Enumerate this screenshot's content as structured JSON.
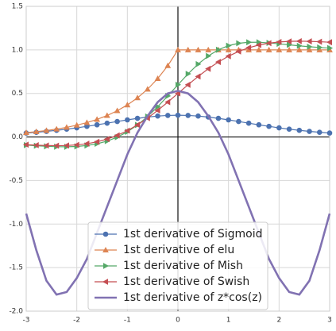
{
  "chart_data": {
    "type": "line",
    "x": [
      -3,
      -2.8,
      -2.6,
      -2.4,
      -2.2,
      -2,
      -1.8,
      -1.6,
      -1.4,
      -1.2,
      -1,
      -0.8,
      -0.6,
      -0.4,
      -0.2,
      0,
      0.2,
      0.4,
      0.6,
      0.8,
      1,
      1.2,
      1.4,
      1.6,
      1.8,
      2,
      2.2,
      2.4,
      2.6,
      2.8,
      3
    ],
    "series": [
      {
        "name": "1st derivative of Sigmoid",
        "color": "#4c72b0",
        "marker": "circle",
        "values": [
          0.0452,
          0.054,
          0.0643,
          0.0763,
          0.0898,
          0.105,
          0.1218,
          0.1398,
          0.1587,
          0.1779,
          0.1966,
          0.2139,
          0.2288,
          0.2403,
          0.2475,
          0.25,
          0.2475,
          0.2403,
          0.2288,
          0.2139,
          0.1966,
          0.1779,
          0.1587,
          0.1398,
          0.1218,
          0.105,
          0.0898,
          0.0763,
          0.0643,
          0.054,
          0.0452
        ]
      },
      {
        "name": "1st derivative of elu",
        "color": "#dd8452",
        "marker": "triangle-up",
        "values": [
          0.0498,
          0.0608,
          0.0743,
          0.0907,
          0.1108,
          0.1353,
          0.1653,
          0.2019,
          0.2466,
          0.3012,
          0.3679,
          0.4493,
          0.5488,
          0.6703,
          0.8187,
          1,
          1,
          1,
          1,
          1,
          1,
          1,
          1,
          1,
          1,
          1,
          1,
          1,
          1,
          1,
          1
        ]
      },
      {
        "name": "1st derivative of Mish",
        "color": "#55a868",
        "marker": "triangle-right",
        "values": [
          -0.0933,
          -0.101,
          -0.1072,
          -0.1116,
          -0.1124,
          -0.1084,
          -0.0977,
          -0.0781,
          -0.047,
          -0.002,
          0.0593,
          0.1382,
          0.235,
          0.3475,
          0.4715,
          0.6,
          0.7248,
          0.837,
          0.9304,
          1.0013,
          1.049,
          1.0763,
          1.0876,
          1.0873,
          1.0803,
          1.07,
          1.058,
          1.0466,
          1.0362,
          1.0278,
          1.0209
        ]
      },
      {
        "name": "1st derivative of Swish",
        "color": "#c44e52",
        "marker": "triangle-left",
        "values": [
          -0.0882,
          -0.0939,
          -0.0981,
          -0.0999,
          -0.0978,
          -0.0908,
          -0.0773,
          -0.0557,
          -0.0244,
          0.018,
          0.0723,
          0.1389,
          0.217,
          0.3052,
          0.4007,
          0.5,
          0.5993,
          0.6948,
          0.783,
          0.8611,
          0.9277,
          0.982,
          1.0244,
          1.0557,
          1.0773,
          1.0908,
          1.0978,
          1.0999,
          1.0981,
          1.0939,
          1.0882
        ]
      },
      {
        "name": "1st derivative of z*cos(z)",
        "color": "#8172b2",
        "marker": "none",
        "values": [
          -0.88,
          -1.3,
          -1.65,
          -1.81,
          -1.78,
          -1.62,
          -1.4,
          -1.1,
          -0.8,
          -0.5,
          -0.2,
          0.05,
          0.24,
          0.4,
          0.5,
          0.53,
          0.5,
          0.4,
          0.24,
          0.05,
          -0.2,
          -0.5,
          -0.8,
          -1.1,
          -1.4,
          -1.62,
          -1.78,
          -1.81,
          -1.65,
          -1.3,
          -0.88
        ]
      }
    ],
    "xlim": [
      -3,
      3
    ],
    "xticks": [
      -3,
      -2,
      -1,
      0,
      1,
      2,
      3
    ],
    "ylim": [
      -2,
      1.5
    ],
    "yticks": [
      {
        "value": -2,
        "label": "-2.0"
      },
      -1.5,
      {
        "value": -1,
        "label": "-1.0"
      },
      -0.5,
      {
        "value": 0,
        "label": "0.0"
      },
      0.5,
      {
        "value": 1,
        "label": "1.0"
      },
      1.5
    ],
    "grid": true,
    "legend": "lower center"
  }
}
